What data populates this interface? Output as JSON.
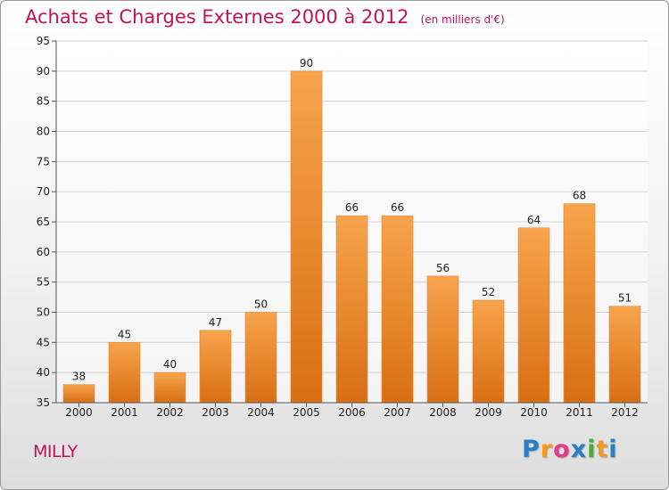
{
  "chart_data": {
    "type": "bar",
    "title": "Achats et Charges Externes 2000 à 2012",
    "subtitle": "(en milliers d'€)",
    "categories": [
      "2000",
      "2001",
      "2002",
      "2003",
      "2004",
      "2005",
      "2006",
      "2007",
      "2008",
      "2009",
      "2010",
      "2011",
      "2012"
    ],
    "values": [
      38,
      45,
      40,
      47,
      50,
      90,
      66,
      66,
      56,
      52,
      64,
      68,
      51
    ],
    "ylim": [
      35,
      95
    ],
    "yticks": [
      35,
      40,
      45,
      50,
      55,
      60,
      65,
      70,
      75,
      80,
      85,
      90,
      95
    ],
    "grid": true,
    "bar_color": "#f08a2c"
  },
  "location_label": "MILLY",
  "brand": {
    "letters": [
      "P",
      "r",
      "o",
      "x",
      "i",
      "t",
      "i"
    ],
    "colors": [
      "#2a7fc4",
      "#f39a1e",
      "#e23a8c",
      "#2a7fc4",
      "#4caa3a",
      "#f39a1e",
      "#2a7fc4"
    ]
  }
}
